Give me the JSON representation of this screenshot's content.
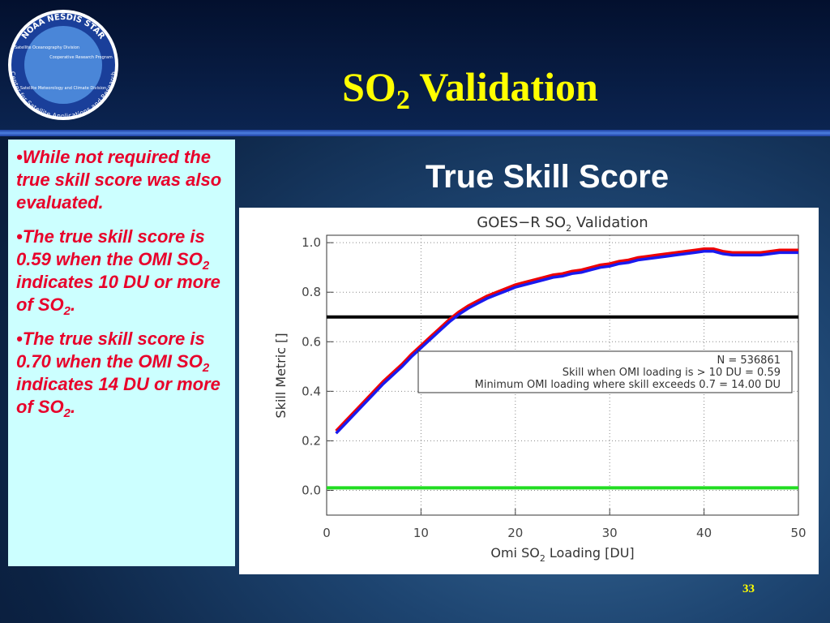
{
  "header": {
    "title_parts": [
      "SO",
      "2",
      " Validation"
    ],
    "logo": {
      "ring_top": "NOAA NESDIS STAR",
      "ring_bottom": "Center for Satellite Applications and Research",
      "inner": [
        "Satellite Oceanography Division",
        "Cooperative Research Program",
        "Satellite Meteorology and Climate Division"
      ]
    }
  },
  "bullets": [
    [
      "While not required the true skill score was also evaluated."
    ],
    [
      "The true skill score is 0.59 when the OMI SO",
      "2",
      " indicates 10 DU or more of SO",
      "2",
      "."
    ],
    [
      "The true skill score is 0.70 when the OMI SO",
      "2",
      " indicates 14 DU or more of SO",
      "2",
      "."
    ]
  ],
  "subtitle": "True Skill Score",
  "chart_data": {
    "type": "line",
    "title": [
      "GOES−R SO",
      "2",
      " Validation"
    ],
    "xlabel": [
      "Omi SO",
      "2",
      " Loading [DU]"
    ],
    "ylabel": "Skill Metric []",
    "x": [
      1,
      2,
      3,
      4,
      5,
      6,
      7,
      8,
      9,
      10,
      11,
      12,
      13,
      14,
      15,
      16,
      17,
      18,
      19,
      20,
      21,
      22,
      23,
      24,
      25,
      26,
      27,
      28,
      29,
      30,
      31,
      32,
      33,
      34,
      35,
      36,
      37,
      38,
      39,
      40,
      41,
      42,
      43,
      44,
      45,
      46,
      47,
      48,
      49,
      50
    ],
    "series": [
      {
        "color": "#ee0000",
        "values": [
          0.24,
          0.28,
          0.32,
          0.36,
          0.4,
          0.44,
          0.475,
          0.51,
          0.55,
          0.585,
          0.62,
          0.655,
          0.69,
          0.72,
          0.745,
          0.765,
          0.785,
          0.8,
          0.815,
          0.83,
          0.84,
          0.85,
          0.86,
          0.87,
          0.875,
          0.885,
          0.89,
          0.9,
          0.91,
          0.915,
          0.925,
          0.93,
          0.94,
          0.945,
          0.95,
          0.955,
          0.96,
          0.965,
          0.97,
          0.975,
          0.975,
          0.965,
          0.96,
          0.96,
          0.96,
          0.96,
          0.965,
          0.97,
          0.97,
          0.97
        ]
      },
      {
        "color": "#1a1aee",
        "values": [
          0.23,
          0.27,
          0.31,
          0.35,
          0.39,
          0.43,
          0.465,
          0.5,
          0.54,
          0.575,
          0.61,
          0.645,
          0.68,
          0.71,
          0.735,
          0.755,
          0.775,
          0.79,
          0.805,
          0.82,
          0.83,
          0.84,
          0.85,
          0.86,
          0.865,
          0.875,
          0.88,
          0.89,
          0.9,
          0.905,
          0.915,
          0.92,
          0.93,
          0.935,
          0.94,
          0.945,
          0.95,
          0.955,
          0.96,
          0.965,
          0.965,
          0.955,
          0.95,
          0.95,
          0.95,
          0.95,
          0.955,
          0.96,
          0.96,
          0.96
        ]
      }
    ],
    "hlines": [
      {
        "value": 0.7,
        "color": "#000000"
      },
      {
        "value": 0.01,
        "color": "#22dd22"
      }
    ],
    "annotations": [
      "N = 536861",
      "Skill when OMI loading is > 10 DU = 0.59",
      "Minimum OMI loading where skill exceeds 0.7 = 14.00 DU"
    ],
    "xlim": [
      0,
      50
    ],
    "xticks": [
      0,
      10,
      20,
      30,
      40,
      50
    ],
    "ylim": [
      -0.1,
      1.03
    ],
    "yticks": [
      {
        "value": 0,
        "label": "0.0"
      },
      {
        "value": 0.2,
        "label": "0.2"
      },
      {
        "value": 0.4,
        "label": "0.4"
      },
      {
        "value": 0.6,
        "label": "0.6"
      },
      {
        "value": 0.8,
        "label": "0.8"
      },
      {
        "value": 1,
        "label": "1.0"
      }
    ],
    "grid": true
  },
  "page_number": "33"
}
